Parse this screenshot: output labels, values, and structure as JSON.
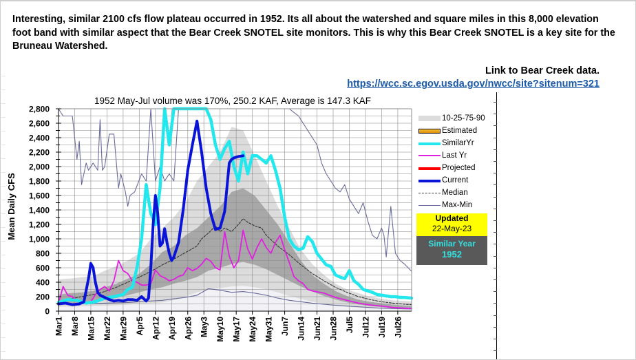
{
  "note": {
    "text": "Interesting, similar 2100 cfs flow plateau occurred in 1952. Its all about the watershed and square miles in this 8,000 elevation foot band with similar aspect that the Bear Creek SNOTEL site monitors. This is why this Bear Creek SNOTEL is a key site for the Bruneau Watershed."
  },
  "link": {
    "label": "Link to Bear Creek data.",
    "url_text": "https://wcc.sc.egov.usda.gov/nwcc/site?sitenum=321"
  },
  "status": {
    "updated_label": "Updated",
    "updated_date": "22-May-23",
    "similar_label": "Similar Year",
    "similar_year": "1952"
  },
  "colors": {
    "similar": "#22e8ee",
    "last_year": "#e020e0",
    "projected": "#ff0000",
    "current": "#0a14d8",
    "median": "#333333",
    "maxmin": "#6a6a9a",
    "band_outer": "#dcdcdc",
    "band_inner": "#a8a8a8",
    "band_lower": "#f2f2f6",
    "estimated_fill": "#f0a000",
    "updated_bg": "#ffff00",
    "similar_bg": "#595959"
  },
  "chart_data": {
    "type": "line",
    "title": "1952 May-Jul volume was 170%, 250.2 KAF, Average is 147.3 KAF",
    "xlabel": "",
    "ylabel": "Mean Daily CFS",
    "ylim": [
      0,
      2800
    ],
    "yticks": [
      0,
      200,
      400,
      600,
      800,
      1000,
      1200,
      1400,
      1600,
      1800,
      2000,
      2200,
      2400,
      2600,
      2800
    ],
    "ytick_labels": [
      "0",
      "200",
      "400",
      "600",
      "800",
      "1,000",
      "1,200",
      "1,400",
      "1,600",
      "1,800",
      "2,000",
      "2,200",
      "2,400",
      "2,600",
      "2,800"
    ],
    "x_unit": "days since Mar 1",
    "xlim": [
      0,
      153
    ],
    "xticks": [
      0,
      7,
      14,
      21,
      28,
      35,
      42,
      49,
      56,
      63,
      70,
      77,
      84,
      91,
      98,
      105,
      112,
      119,
      126,
      133,
      140,
      147
    ],
    "xtick_labels": [
      "Mar1",
      "Mar8",
      "Mar15",
      "Mar22",
      "Mar29",
      "Apr5",
      "Apr12",
      "Apr19",
      "Apr26",
      "May3",
      "May10",
      "May17",
      "May24",
      "May31",
      "Jun7",
      "Jun14",
      "Jun21",
      "Jun28",
      "Jul5",
      "Jul12",
      "Jul19",
      "Jul26"
    ],
    "grid": true,
    "legend": {
      "position": "right",
      "entries": [
        "10-25-75-90",
        "Estimated",
        "SimilarYr",
        "Last Yr",
        "Projected",
        "Current",
        "Median",
        "Max-Min"
      ]
    },
    "bands": {
      "x": [
        0,
        5,
        10,
        15,
        20,
        25,
        30,
        35,
        40,
        45,
        50,
        55,
        60,
        65,
        70,
        75,
        80,
        85,
        90,
        95,
        100,
        105,
        110,
        115,
        120,
        125,
        130,
        135,
        140,
        145,
        150,
        153
      ],
      "p10": [
        60,
        60,
        65,
        70,
        75,
        80,
        90,
        100,
        110,
        120,
        150,
        200,
        260,
        300,
        320,
        340,
        350,
        330,
        300,
        260,
        210,
        170,
        130,
        100,
        80,
        60,
        50,
        40,
        35,
        30,
        25,
        25
      ],
      "p25": [
        90,
        100,
        110,
        130,
        150,
        180,
        220,
        260,
        300,
        330,
        380,
        420,
        470,
        560,
        600,
        650,
        680,
        640,
        580,
        500,
        420,
        340,
        270,
        210,
        160,
        120,
        90,
        70,
        55,
        45,
        40,
        38
      ],
      "p75": [
        230,
        250,
        260,
        280,
        330,
        380,
        450,
        520,
        650,
        820,
        900,
        1050,
        1150,
        1300,
        1450,
        1650,
        1700,
        1600,
        1400,
        1200,
        950,
        700,
        500,
        380,
        280,
        210,
        160,
        130,
        110,
        90,
        80,
        75
      ],
      "p90": [
        440,
        450,
        470,
        480,
        560,
        620,
        700,
        800,
        1000,
        1150,
        1300,
        1500,
        1800,
        2000,
        2200,
        2550,
        2500,
        2150,
        1800,
        1450,
        1150,
        850,
        650,
        500,
        380,
        300,
        250,
        200,
        170,
        150,
        140,
        135
      ]
    },
    "series": [
      {
        "name": "Max-Min (max)",
        "x": [
          0,
          2,
          4,
          6,
          8,
          9,
          10,
          12,
          13,
          15,
          17,
          18,
          19,
          20,
          22,
          24,
          26,
          27,
          29,
          30,
          31,
          33,
          36,
          38,
          40,
          42,
          44,
          46,
          48,
          50,
          52,
          54,
          56,
          58,
          60,
          100,
          102,
          104,
          106,
          108,
          110,
          112,
          114,
          116,
          118,
          120,
          122,
          124,
          126,
          128,
          130,
          132,
          134,
          136,
          138,
          140,
          141,
          142,
          144,
          146,
          148,
          150,
          153
        ],
        "values": [
          2800,
          2700,
          2700,
          2700,
          2100,
          2350,
          1750,
          2050,
          1950,
          2050,
          1950,
          2650,
          1950,
          2000,
          2450,
          2450,
          1700,
          1900,
          1650,
          1450,
          1600,
          1650,
          1900,
          1800,
          2800,
          1800,
          2000,
          1800,
          1900,
          1800,
          2800,
          2800,
          2800,
          2800,
          2800,
          2800,
          2750,
          2700,
          2600,
          2500,
          2400,
          2300,
          2050,
          1900,
          1800,
          1700,
          1650,
          1750,
          1550,
          1450,
          1350,
          1500,
          1250,
          1050,
          1000,
          1150,
          1050,
          750,
          1450,
          800,
          700,
          650,
          550
        ]
      },
      {
        "name": "Max-Min (min)",
        "x": [
          0,
          10,
          20,
          30,
          40,
          45,
          50,
          55,
          60,
          65,
          70,
          75,
          80,
          85,
          90,
          95,
          100,
          110,
          120,
          130,
          140,
          153
        ],
        "values": [
          95,
          100,
          110,
          120,
          140,
          150,
          170,
          190,
          220,
          310,
          290,
          260,
          270,
          250,
          220,
          180,
          150,
          110,
          80,
          60,
          40,
          30
        ]
      },
      {
        "name": "Median",
        "x": [
          0,
          5,
          10,
          15,
          20,
          25,
          30,
          35,
          40,
          45,
          50,
          55,
          60,
          62,
          65,
          68,
          70,
          72,
          75,
          78,
          80,
          82,
          85,
          88,
          90,
          95,
          100,
          105,
          110,
          115,
          120,
          125,
          130,
          135,
          140,
          145,
          150,
          153
        ],
        "values": [
          140,
          170,
          200,
          230,
          270,
          330,
          400,
          470,
          550,
          640,
          720,
          810,
          900,
          1000,
          1080,
          1180,
          1100,
          1150,
          1100,
          1200,
          1280,
          1230,
          1180,
          1150,
          1050,
          900,
          780,
          640,
          520,
          420,
          330,
          260,
          200,
          160,
          130,
          110,
          95,
          90
        ]
      },
      {
        "name": "Last Yr",
        "x": [
          0,
          2,
          4,
          6,
          8,
          10,
          12,
          14,
          16,
          18,
          20,
          22,
          24,
          26,
          28,
          30,
          32,
          34,
          36,
          38,
          40,
          42,
          44,
          46,
          48,
          50,
          52,
          54,
          56,
          58,
          60,
          62,
          64,
          66,
          68,
          70,
          72,
          74,
          76,
          78,
          80,
          82,
          84,
          86,
          88,
          90,
          92,
          94,
          96,
          98,
          100,
          102,
          104,
          106,
          108,
          110,
          115,
          120,
          125,
          130,
          135,
          140,
          145,
          150,
          153
        ],
        "values": [
          110,
          340,
          220,
          200,
          150,
          120,
          100,
          130,
          230,
          300,
          340,
          280,
          420,
          700,
          560,
          520,
          420,
          400,
          360,
          360,
          380,
          570,
          490,
          460,
          420,
          440,
          480,
          500,
          600,
          560,
          590,
          650,
          730,
          690,
          600,
          570,
          1100,
          760,
          600,
          700,
          1120,
          860,
          720,
          880,
          1000,
          880,
          800,
          950,
          1050,
          850,
          670,
          480,
          420,
          380,
          300,
          280,
          250,
          190,
          150,
          110,
          85,
          70,
          50,
          40,
          35
        ]
      },
      {
        "name": "SimilarYr",
        "x": [
          0,
          4,
          8,
          12,
          16,
          20,
          24,
          28,
          30,
          32,
          34,
          36,
          38,
          40,
          42,
          44,
          46,
          48,
          50,
          52,
          54,
          56,
          58,
          60,
          62,
          64,
          66,
          68,
          70,
          72,
          74,
          76,
          78,
          80,
          82,
          84,
          86,
          88,
          90,
          92,
          94,
          96,
          98,
          100,
          102,
          104,
          106,
          108,
          110,
          112,
          114,
          116,
          118,
          120,
          122,
          124,
          126,
          128,
          130,
          132,
          134,
          136,
          138,
          140,
          142,
          144,
          146,
          148,
          150,
          153
        ],
        "values": [
          120,
          160,
          150,
          110,
          130,
          180,
          200,
          230,
          300,
          330,
          600,
          1000,
          1750,
          1350,
          1200,
          1700,
          2850,
          2300,
          2800,
          2800,
          2800,
          2800,
          2800,
          2800,
          2800,
          2800,
          2650,
          2300,
          2100,
          2250,
          2350,
          2000,
          1800,
          2200,
          1900,
          2150,
          2150,
          2100,
          2050,
          2150,
          1950,
          1700,
          1300,
          1000,
          900,
          850,
          870,
          1030,
          960,
          800,
          720,
          640,
          620,
          500,
          470,
          450,
          560,
          420,
          370,
          300,
          280,
          260,
          230,
          220,
          210,
          200,
          200,
          190,
          190,
          180
        ]
      },
      {
        "name": "Current",
        "x": [
          0,
          3,
          6,
          9,
          11,
          13,
          14,
          15,
          16,
          17,
          18,
          20,
          22,
          24,
          26,
          28,
          30,
          32,
          34,
          36,
          38,
          39,
          40,
          41,
          42,
          43,
          44,
          45,
          46,
          47,
          48,
          49,
          50,
          52,
          54,
          56,
          58,
          60,
          62,
          64,
          66,
          68,
          70,
          72,
          74,
          75,
          76,
          78,
          80
        ],
        "values": [
          100,
          110,
          90,
          100,
          130,
          450,
          660,
          600,
          400,
          260,
          220,
          190,
          160,
          140,
          150,
          140,
          160,
          160,
          150,
          200,
          140,
          180,
          600,
          1200,
          1600,
          1350,
          900,
          940,
          1140,
          950,
          800,
          700,
          750,
          950,
          1400,
          1950,
          2300,
          2630,
          2200,
          1700,
          1350,
          1130,
          1150,
          1380,
          2050,
          2100,
          2120,
          2140,
          2150
        ]
      },
      {
        "name": "Projected",
        "x": [],
        "values": []
      }
    ]
  }
}
